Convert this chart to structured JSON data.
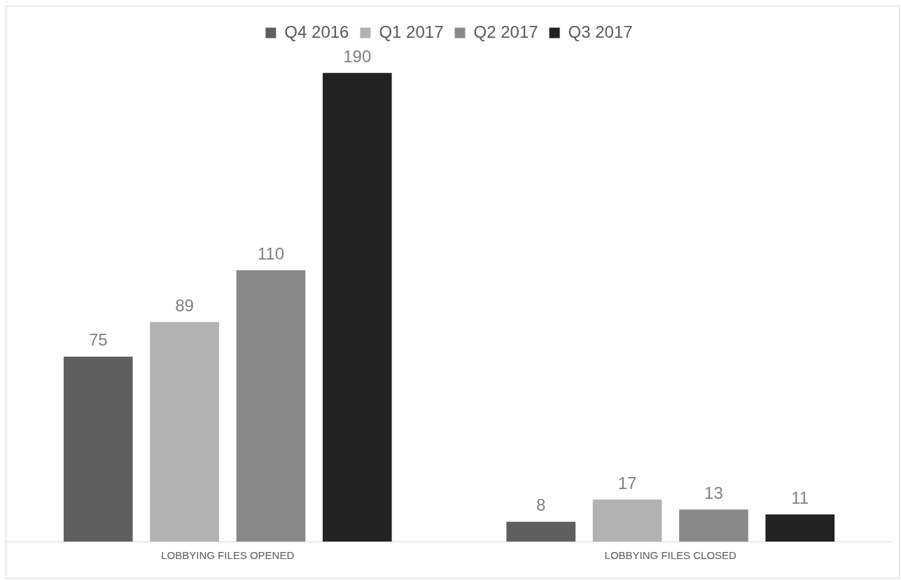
{
  "chart_data": {
    "type": "bar",
    "categories": [
      "LOBBYING FILES OPENED",
      "LOBBYING FILES CLOSED"
    ],
    "series": [
      {
        "name": "Q4 2016",
        "color": "#5f5f5f",
        "values": [
          75,
          8
        ]
      },
      {
        "name": "Q1 2017",
        "color": "#b2b2b2",
        "values": [
          89,
          17
        ]
      },
      {
        "name": "Q2 2017",
        "color": "#898989",
        "values": [
          110,
          13
        ]
      },
      {
        "name": "Q3 2017",
        "color": "#222222",
        "values": [
          190,
          11
        ]
      }
    ],
    "data_labels": true,
    "legend": "top",
    "grid": false,
    "tick_labels": "x"
  }
}
